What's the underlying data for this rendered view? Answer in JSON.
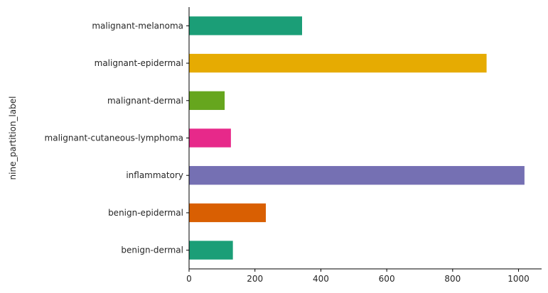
{
  "chart_data": {
    "type": "bar",
    "orientation": "horizontal",
    "title": "",
    "xlabel": "",
    "ylabel": "nine_partition_label",
    "categories": [
      "malignant-melanoma",
      "malignant-epidermal",
      "malignant-dermal",
      "malignant-cutaneous-lymphoma",
      "inflammatory",
      "benign-epidermal",
      "benign-dermal"
    ],
    "values": [
      343,
      903,
      108,
      127,
      1018,
      233,
      133
    ],
    "colors": [
      "#1b9e77",
      "#e6ab02",
      "#66a61e",
      "#e7298a",
      "#7570b3",
      "#d95f02",
      "#1b9e77"
    ],
    "xlim": [
      0,
      1070
    ],
    "xticks": [
      0,
      200,
      400,
      600,
      800,
      1000
    ],
    "grid": false,
    "legend": "none"
  }
}
